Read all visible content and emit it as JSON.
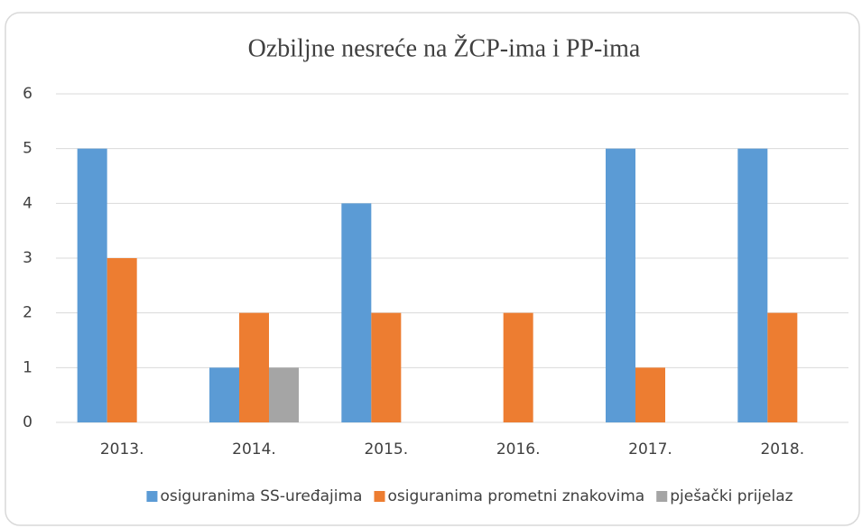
{
  "chart_data": {
    "type": "bar",
    "title": "Ozbiljne nesreće na ŽCP-ima i PP-ima",
    "categories": [
      "2013.",
      "2014.",
      "2015.",
      "2016.",
      "2017.",
      "2018."
    ],
    "series": [
      {
        "name": "osiguranima SS-uređajima",
        "color": "#5b9bd5",
        "values": [
          5,
          1,
          4,
          0,
          5,
          5
        ]
      },
      {
        "name": "osiguranima prometni znakovima",
        "color": "#ed7d31",
        "values": [
          3,
          2,
          2,
          2,
          1,
          2
        ]
      },
      {
        "name": "pješački prijelaz",
        "color": "#a5a5a5",
        "values": [
          0,
          1,
          0,
          0,
          0,
          0
        ]
      }
    ],
    "ylim": [
      0,
      6
    ],
    "yticks": [
      0,
      1,
      2,
      3,
      4,
      5,
      6
    ],
    "grid": true,
    "legend": "bottom"
  }
}
